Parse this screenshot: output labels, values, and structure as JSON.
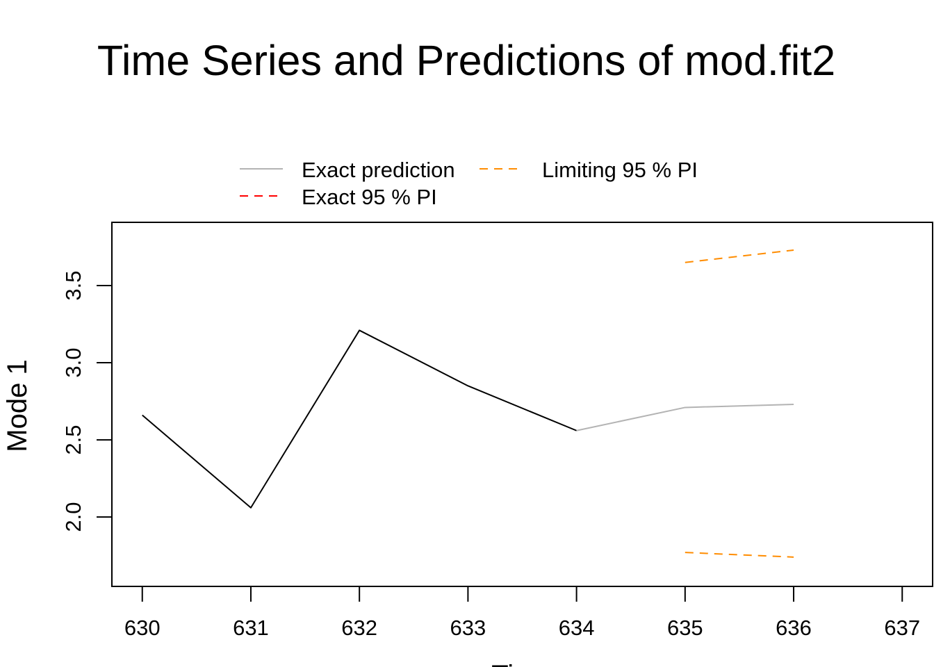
{
  "chart_data": {
    "type": "line",
    "title": "Time Series and Predictions of mod.fit2",
    "xlabel": "Time",
    "ylabel": "Mode 1",
    "xlim": [
      629.72,
      637.28
    ],
    "ylim": [
      1.55,
      3.91
    ],
    "x_ticks": [
      630,
      631,
      632,
      633,
      634,
      635,
      636,
      637
    ],
    "y_ticks": [
      2.0,
      2.5,
      3.0,
      3.5
    ],
    "x_tick_labels": [
      "630",
      "631",
      "632",
      "633",
      "634",
      "635",
      "636",
      "637"
    ],
    "y_tick_labels": [
      "2.0",
      "2.5",
      "3.0",
      "3.5"
    ],
    "grid": false,
    "legend_position": "top-center, outside plot",
    "legend": [
      {
        "label": "Exact prediction",
        "color": "#b3b3b3",
        "dash": "solid"
      },
      {
        "label": "Limiting 95 % PI",
        "color": "#ff8c00",
        "dash": "dashed"
      },
      {
        "label": "Exact 95 % PI",
        "color": "#ff0000",
        "dash": "dashed"
      }
    ],
    "series": [
      {
        "name": "",
        "color": "#000000",
        "dash": "solid",
        "x": [
          630,
          631,
          632,
          633,
          634
        ],
        "y": [
          2.66,
          2.06,
          3.21,
          2.85,
          2.56
        ]
      },
      {
        "name": "Exact prediction",
        "color": "#b3b3b3",
        "dash": "solid",
        "x": [
          634,
          635,
          636
        ],
        "y": [
          2.56,
          2.71,
          2.73
        ]
      },
      {
        "name": "Limiting 95 % PI",
        "color": "#ff8c00",
        "dash": "dashed",
        "x": [
          635,
          636
        ],
        "y": [
          3.65,
          3.73
        ]
      },
      {
        "name": "Limiting 95 % PI",
        "color": "#ff8c00",
        "dash": "dashed",
        "x": [
          635,
          636
        ],
        "y": [
          1.77,
          1.74
        ]
      }
    ]
  }
}
